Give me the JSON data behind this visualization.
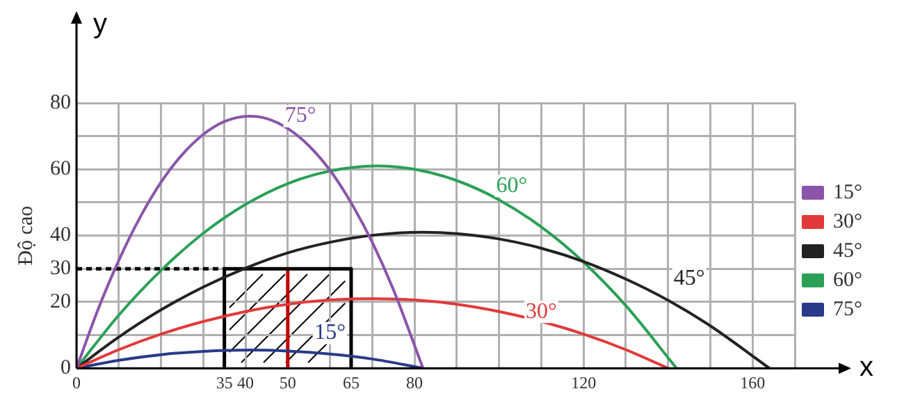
{
  "chart_data": {
    "type": "line",
    "xlabel": "x",
    "ylabel": "Độ cao",
    "xlim": [
      0,
      170
    ],
    "ylim": [
      0,
      80
    ],
    "xticks": [
      0,
      {
        "value": 10,
        "label": null
      },
      {
        "value": 20,
        "label": null
      },
      {
        "value": 30,
        "label": null
      },
      35,
      40,
      50,
      {
        "value": 60,
        "label": null
      },
      65,
      {
        "value": 70,
        "label": null
      },
      80,
      {
        "value": 90,
        "label": null
      },
      {
        "value": 100,
        "label": null
      },
      {
        "value": 110,
        "label": null
      },
      120,
      {
        "value": 130,
        "label": null
      },
      {
        "value": 140,
        "label": null
      },
      {
        "value": 150,
        "label": null
      },
      160,
      {
        "value": 170,
        "label": null
      }
    ],
    "yticks": [
      0,
      {
        "value": 10,
        "label": null
      },
      20,
      30,
      40,
      {
        "value": 50,
        "label": null
      },
      60,
      {
        "value": 70,
        "label": null
      },
      80
    ],
    "grid": true,
    "legend": "right",
    "marker": "none",
    "annotations": [
      "y",
      "75°",
      "60°",
      "45°",
      "30°",
      {
        "text": "15°",
        "x": 60,
        "y": 4.3
      }
    ],
    "series": [
      {
        "name": "15°",
        "color": "#8a55a8",
        "x": [
          0,
          5,
          10,
          15,
          20,
          25,
          30,
          35,
          41,
          45,
          50,
          55,
          60,
          65,
          70,
          75,
          82
        ],
        "values": [
          0,
          17.4,
          32.5,
          45.4,
          56.1,
          64.4,
          70.5,
          74.4,
          76,
          75.3,
          72.3,
          67.1,
          59.7,
          49.9,
          38,
          23.7,
          0
        ]
      },
      {
        "name": "30°",
        "color": "#e03a3a",
        "x": [
          0,
          10,
          20,
          30,
          40,
          50,
          60,
          70,
          80,
          90,
          100,
          110,
          120,
          130,
          140
        ],
        "values": [
          0,
          5.6,
          10.3,
          14.1,
          17.1,
          19.3,
          20.6,
          21,
          20.6,
          19.3,
          17.1,
          14.1,
          10.3,
          5.6,
          0
        ]
      },
      {
        "name": "45°",
        "color": "#222222",
        "x": [
          0,
          10,
          20,
          30,
          40,
          50,
          60,
          70,
          82,
          90,
          100,
          110,
          120,
          130,
          140,
          150,
          164
        ],
        "values": [
          0,
          9.4,
          17.6,
          24.5,
          30.2,
          34.8,
          38,
          40.1,
          41,
          40.6,
          39,
          36.2,
          32.2,
          26.9,
          20.5,
          12.8,
          0
        ]
      },
      {
        "name": "60°",
        "color": "#2aa055",
        "x": [
          0,
          10,
          20,
          30,
          40,
          50,
          60,
          71,
          80,
          90,
          100,
          110,
          120,
          130,
          142
        ],
        "values": [
          0,
          16,
          29.5,
          40.7,
          49.4,
          55.7,
          59.5,
          61,
          60,
          56.6,
          50.8,
          42.6,
          32,
          18.9,
          0
        ]
      },
      {
        "name": "75°",
        "color": "#2a3a8a",
        "x": [
          0,
          10,
          20,
          30,
          41,
          50,
          60,
          70,
          82
        ],
        "values": [
          0,
          2.4,
          4.1,
          5.1,
          5.5,
          5.2,
          4.3,
          2.8,
          0
        ]
      },
      {
        "color": "#000000",
        "x": [
          35,
          35,
          65,
          65
        ],
        "values": [
          0,
          30,
          30,
          0
        ]
      },
      {
        "color": "#c00000",
        "x": [
          50,
          50
        ],
        "values": [
          0,
          30
        ]
      },
      {
        "color": "#000000",
        "x": [
          0,
          35
        ],
        "values": [
          30,
          30
        ],
        "line_style": "dashed"
      }
    ]
  }
}
